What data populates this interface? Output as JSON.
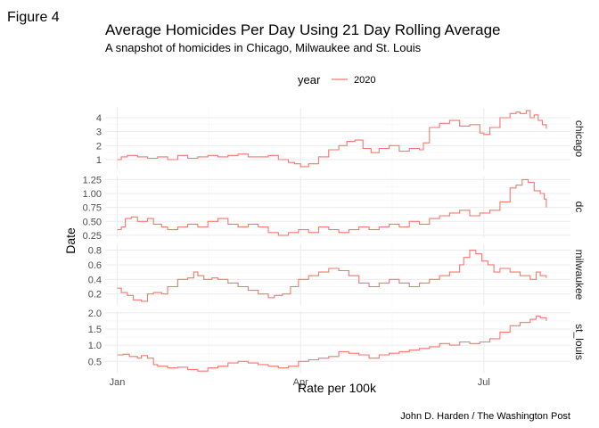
{
  "figure_label": "Figure 4",
  "caption": "John D. Harden / The Washington Post",
  "colors": {
    "series": "#f8766d",
    "grid": "#ebebeb",
    "text": "#4d4d4d"
  },
  "chart_data": {
    "type": "line",
    "title": "Average Homicides Per Day Using 21 Day Rolling Average",
    "subtitle": "A snapshot of homicides in Chicago, Milwaukee and St. Louis",
    "xlabel": "Rate per 100k",
    "ylabel": "Date",
    "legend": {
      "title": "year",
      "placement": "top",
      "entries": [
        "2020"
      ]
    },
    "x_ticks": [
      "Jan",
      "Apr",
      "Jul"
    ],
    "x_tick_days": [
      0,
      91,
      182
    ],
    "xlim_days": [
      -6,
      225
    ],
    "grid": true,
    "step": true,
    "panels": [
      {
        "name": "chicago",
        "ylim": [
          0.3,
          4.7
        ],
        "y_ticks": [
          1,
          2,
          3,
          4
        ],
        "y_tick_labels": [
          "1",
          "2",
          "3",
          "4"
        ],
        "x": [
          0,
          2,
          5,
          10,
          15,
          20,
          25,
          30,
          35,
          40,
          45,
          50,
          55,
          60,
          65,
          70,
          75,
          80,
          85,
          88,
          91,
          95,
          100,
          105,
          110,
          114,
          118,
          122,
          126,
          130,
          135,
          140,
          145,
          150,
          152,
          155,
          160,
          165,
          170,
          175,
          180,
          182,
          185,
          190,
          195,
          198,
          200,
          203,
          205,
          207,
          209,
          211,
          213
        ],
        "y": [
          1.0,
          1.2,
          1.3,
          1.2,
          1.1,
          1.2,
          1.0,
          1.3,
          1.1,
          1.2,
          1.3,
          1.2,
          1.3,
          1.4,
          1.2,
          1.2,
          1.3,
          1.0,
          0.8,
          0.7,
          0.5,
          0.7,
          1.2,
          1.7,
          2.0,
          2.3,
          2.4,
          1.8,
          1.5,
          1.8,
          2.0,
          1.6,
          1.8,
          1.7,
          2.2,
          3.3,
          3.6,
          3.8,
          3.4,
          3.5,
          2.9,
          2.8,
          3.3,
          4.0,
          4.3,
          4.4,
          4.3,
          4.5,
          4.0,
          4.2,
          3.8,
          3.5,
          3.2
        ]
      },
      {
        "name": "dc",
        "ylim": [
          0.2,
          1.32
        ],
        "y_ticks": [
          0.25,
          0.5,
          0.75,
          1.0,
          1.25
        ],
        "y_tick_labels": [
          "0.25",
          "0.50",
          "0.75",
          "1.00",
          "1.25"
        ],
        "x": [
          0,
          2,
          4,
          7,
          10,
          15,
          18,
          22,
          25,
          30,
          35,
          40,
          45,
          50,
          55,
          60,
          65,
          70,
          75,
          80,
          85,
          90,
          95,
          100,
          105,
          110,
          115,
          120,
          125,
          130,
          135,
          140,
          145,
          150,
          155,
          160,
          165,
          170,
          175,
          180,
          185,
          190,
          195,
          198,
          201,
          204,
          207,
          210,
          212,
          213
        ],
        "y": [
          0.35,
          0.4,
          0.55,
          0.58,
          0.5,
          0.55,
          0.45,
          0.4,
          0.35,
          0.4,
          0.45,
          0.4,
          0.5,
          0.55,
          0.45,
          0.4,
          0.45,
          0.4,
          0.3,
          0.25,
          0.3,
          0.35,
          0.3,
          0.4,
          0.35,
          0.3,
          0.35,
          0.4,
          0.35,
          0.4,
          0.45,
          0.4,
          0.5,
          0.45,
          0.55,
          0.6,
          0.65,
          0.7,
          0.6,
          0.65,
          0.7,
          0.85,
          1.1,
          1.15,
          1.25,
          1.2,
          1.05,
          1.0,
          0.9,
          0.75
        ]
      },
      {
        "name": "milwaukee",
        "ylim": [
          0.05,
          0.88
        ],
        "y_ticks": [
          0.2,
          0.4,
          0.6,
          0.8
        ],
        "y_tick_labels": [
          "0.2",
          "0.4",
          "0.6",
          "0.8"
        ],
        "x": [
          0,
          2,
          5,
          8,
          12,
          15,
          18,
          22,
          25,
          30,
          35,
          38,
          40,
          43,
          47,
          50,
          55,
          60,
          65,
          70,
          75,
          78,
          82,
          86,
          90,
          95,
          100,
          105,
          110,
          115,
          120,
          125,
          130,
          135,
          140,
          145,
          150,
          155,
          160,
          165,
          170,
          172,
          175,
          178,
          181,
          184,
          187,
          190,
          195,
          200,
          205,
          208,
          210,
          213
        ],
        "y": [
          0.28,
          0.22,
          0.18,
          0.12,
          0.1,
          0.2,
          0.22,
          0.2,
          0.3,
          0.4,
          0.42,
          0.5,
          0.45,
          0.4,
          0.42,
          0.4,
          0.35,
          0.3,
          0.25,
          0.2,
          0.15,
          0.18,
          0.2,
          0.3,
          0.4,
          0.45,
          0.5,
          0.55,
          0.52,
          0.45,
          0.35,
          0.3,
          0.35,
          0.4,
          0.35,
          0.3,
          0.35,
          0.4,
          0.45,
          0.5,
          0.6,
          0.7,
          0.8,
          0.75,
          0.65,
          0.6,
          0.5,
          0.55,
          0.5,
          0.45,
          0.4,
          0.5,
          0.45,
          0.42
        ]
      },
      {
        "name": "st_louis",
        "ylim": [
          0.15,
          2.05
        ],
        "y_ticks": [
          0.5,
          1.0,
          1.5,
          2.0
        ],
        "y_tick_labels": [
          "0.5",
          "1.0",
          "1.5",
          "2.0"
        ],
        "x": [
          0,
          3,
          6,
          10,
          12,
          15,
          18,
          20,
          25,
          30,
          35,
          40,
          45,
          50,
          55,
          60,
          65,
          70,
          75,
          80,
          85,
          90,
          95,
          100,
          105,
          110,
          115,
          120,
          125,
          130,
          135,
          140,
          145,
          150,
          155,
          160,
          165,
          170,
          175,
          180,
          185,
          190,
          195,
          200,
          205,
          208,
          210,
          213
        ],
        "y": [
          0.7,
          0.72,
          0.65,
          0.6,
          0.68,
          0.6,
          0.4,
          0.35,
          0.3,
          0.32,
          0.25,
          0.2,
          0.3,
          0.35,
          0.45,
          0.5,
          0.45,
          0.4,
          0.35,
          0.3,
          0.35,
          0.5,
          0.55,
          0.6,
          0.65,
          0.8,
          0.75,
          0.7,
          0.6,
          0.7,
          0.75,
          0.8,
          0.85,
          0.9,
          0.95,
          1.05,
          1.0,
          1.1,
          1.05,
          1.1,
          1.2,
          1.4,
          1.6,
          1.7,
          1.8,
          1.9,
          1.85,
          1.75
        ]
      }
    ]
  }
}
